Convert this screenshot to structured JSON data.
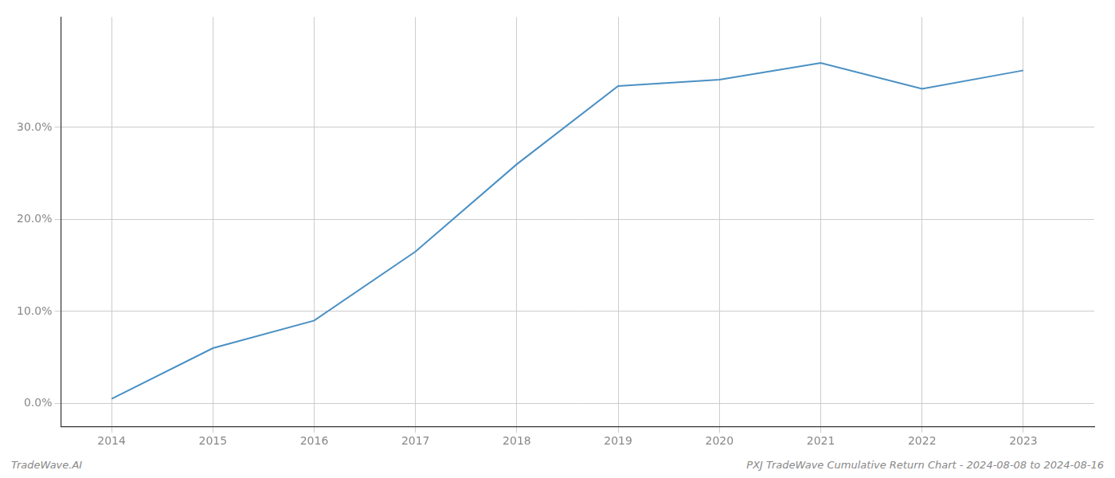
{
  "chart_data": {
    "type": "line",
    "x": [
      2014,
      2015,
      2016,
      2017,
      2018,
      2019,
      2020,
      2021,
      2022,
      2023
    ],
    "values": [
      0.5,
      6.0,
      9.0,
      16.5,
      26.0,
      34.5,
      35.2,
      37.0,
      34.2,
      36.2
    ],
    "color": "#4a90c4",
    "xlim": [
      2013.5,
      2023.7
    ],
    "xticks": [
      2014,
      2015,
      2016,
      2017,
      2018,
      2019,
      2020,
      2021,
      2022,
      2023
    ],
    "ylim": [
      -2.5,
      42
    ],
    "yticks": [
      {
        "value": 0.0,
        "label": "0.0%"
      },
      {
        "value": 10.0,
        "label": "10.0%"
      },
      {
        "value": 20.0,
        "label": "20.0%"
      },
      {
        "value": 30.0,
        "label": "30.0%"
      }
    ],
    "grid": true,
    "annotations": [
      "TradeWave.AI",
      "PXJ TradeWave Cumulative Return Chart - 2024-08-08 to 2024-08-16"
    ]
  }
}
